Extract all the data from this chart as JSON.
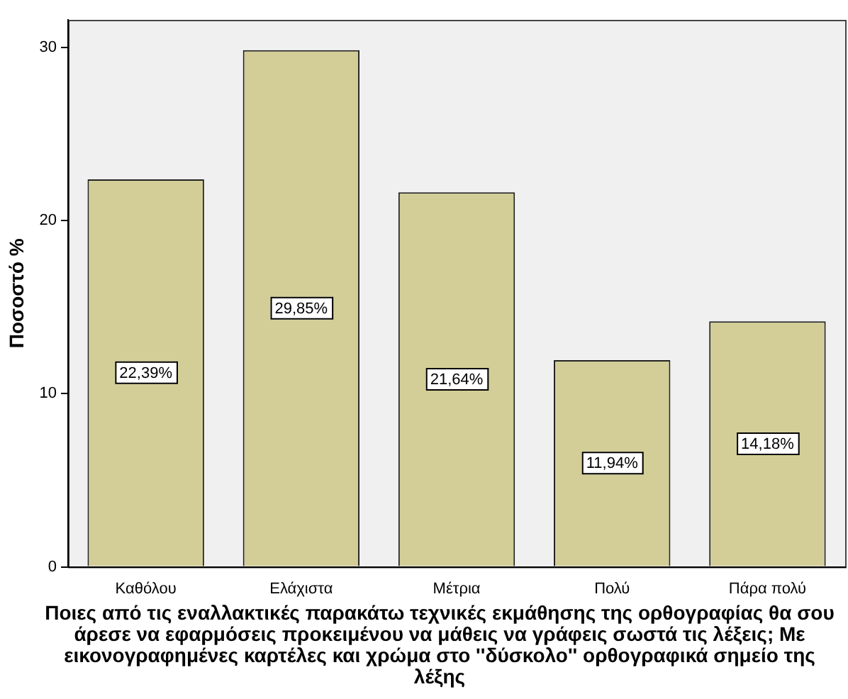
{
  "chart_data": {
    "type": "bar",
    "categories": [
      "Καθόλου",
      "Ελάχιστα",
      "Μέτρια",
      "Πολύ",
      "Πάρα πολύ"
    ],
    "values": [
      22.39,
      29.85,
      21.64,
      11.94,
      14.18
    ],
    "value_labels": [
      "22,39%",
      "29,85%",
      "21,64%",
      "11,94%",
      "14,18%"
    ],
    "color": "#d3ce97",
    "ylabel": "Ποσοστό %",
    "xlabel": "Ποιες από τις εναλλακτικές παρακάτω τεχνικές εκμάθησης της ορθογραφίας θα σου άρεσε να εφαρμόσεις προκειμένου να μάθεις να γράφεις σωστά τις λέξεις; Με εικονογραφημένες καρτέλες και χρώμα στο ''δύσκολο'' ορθογραφικά σημείο της λέξης",
    "ylim": [
      0,
      31.6
    ],
    "yticks": [
      0,
      10,
      20,
      30
    ],
    "grid": false,
    "legend": false
  }
}
